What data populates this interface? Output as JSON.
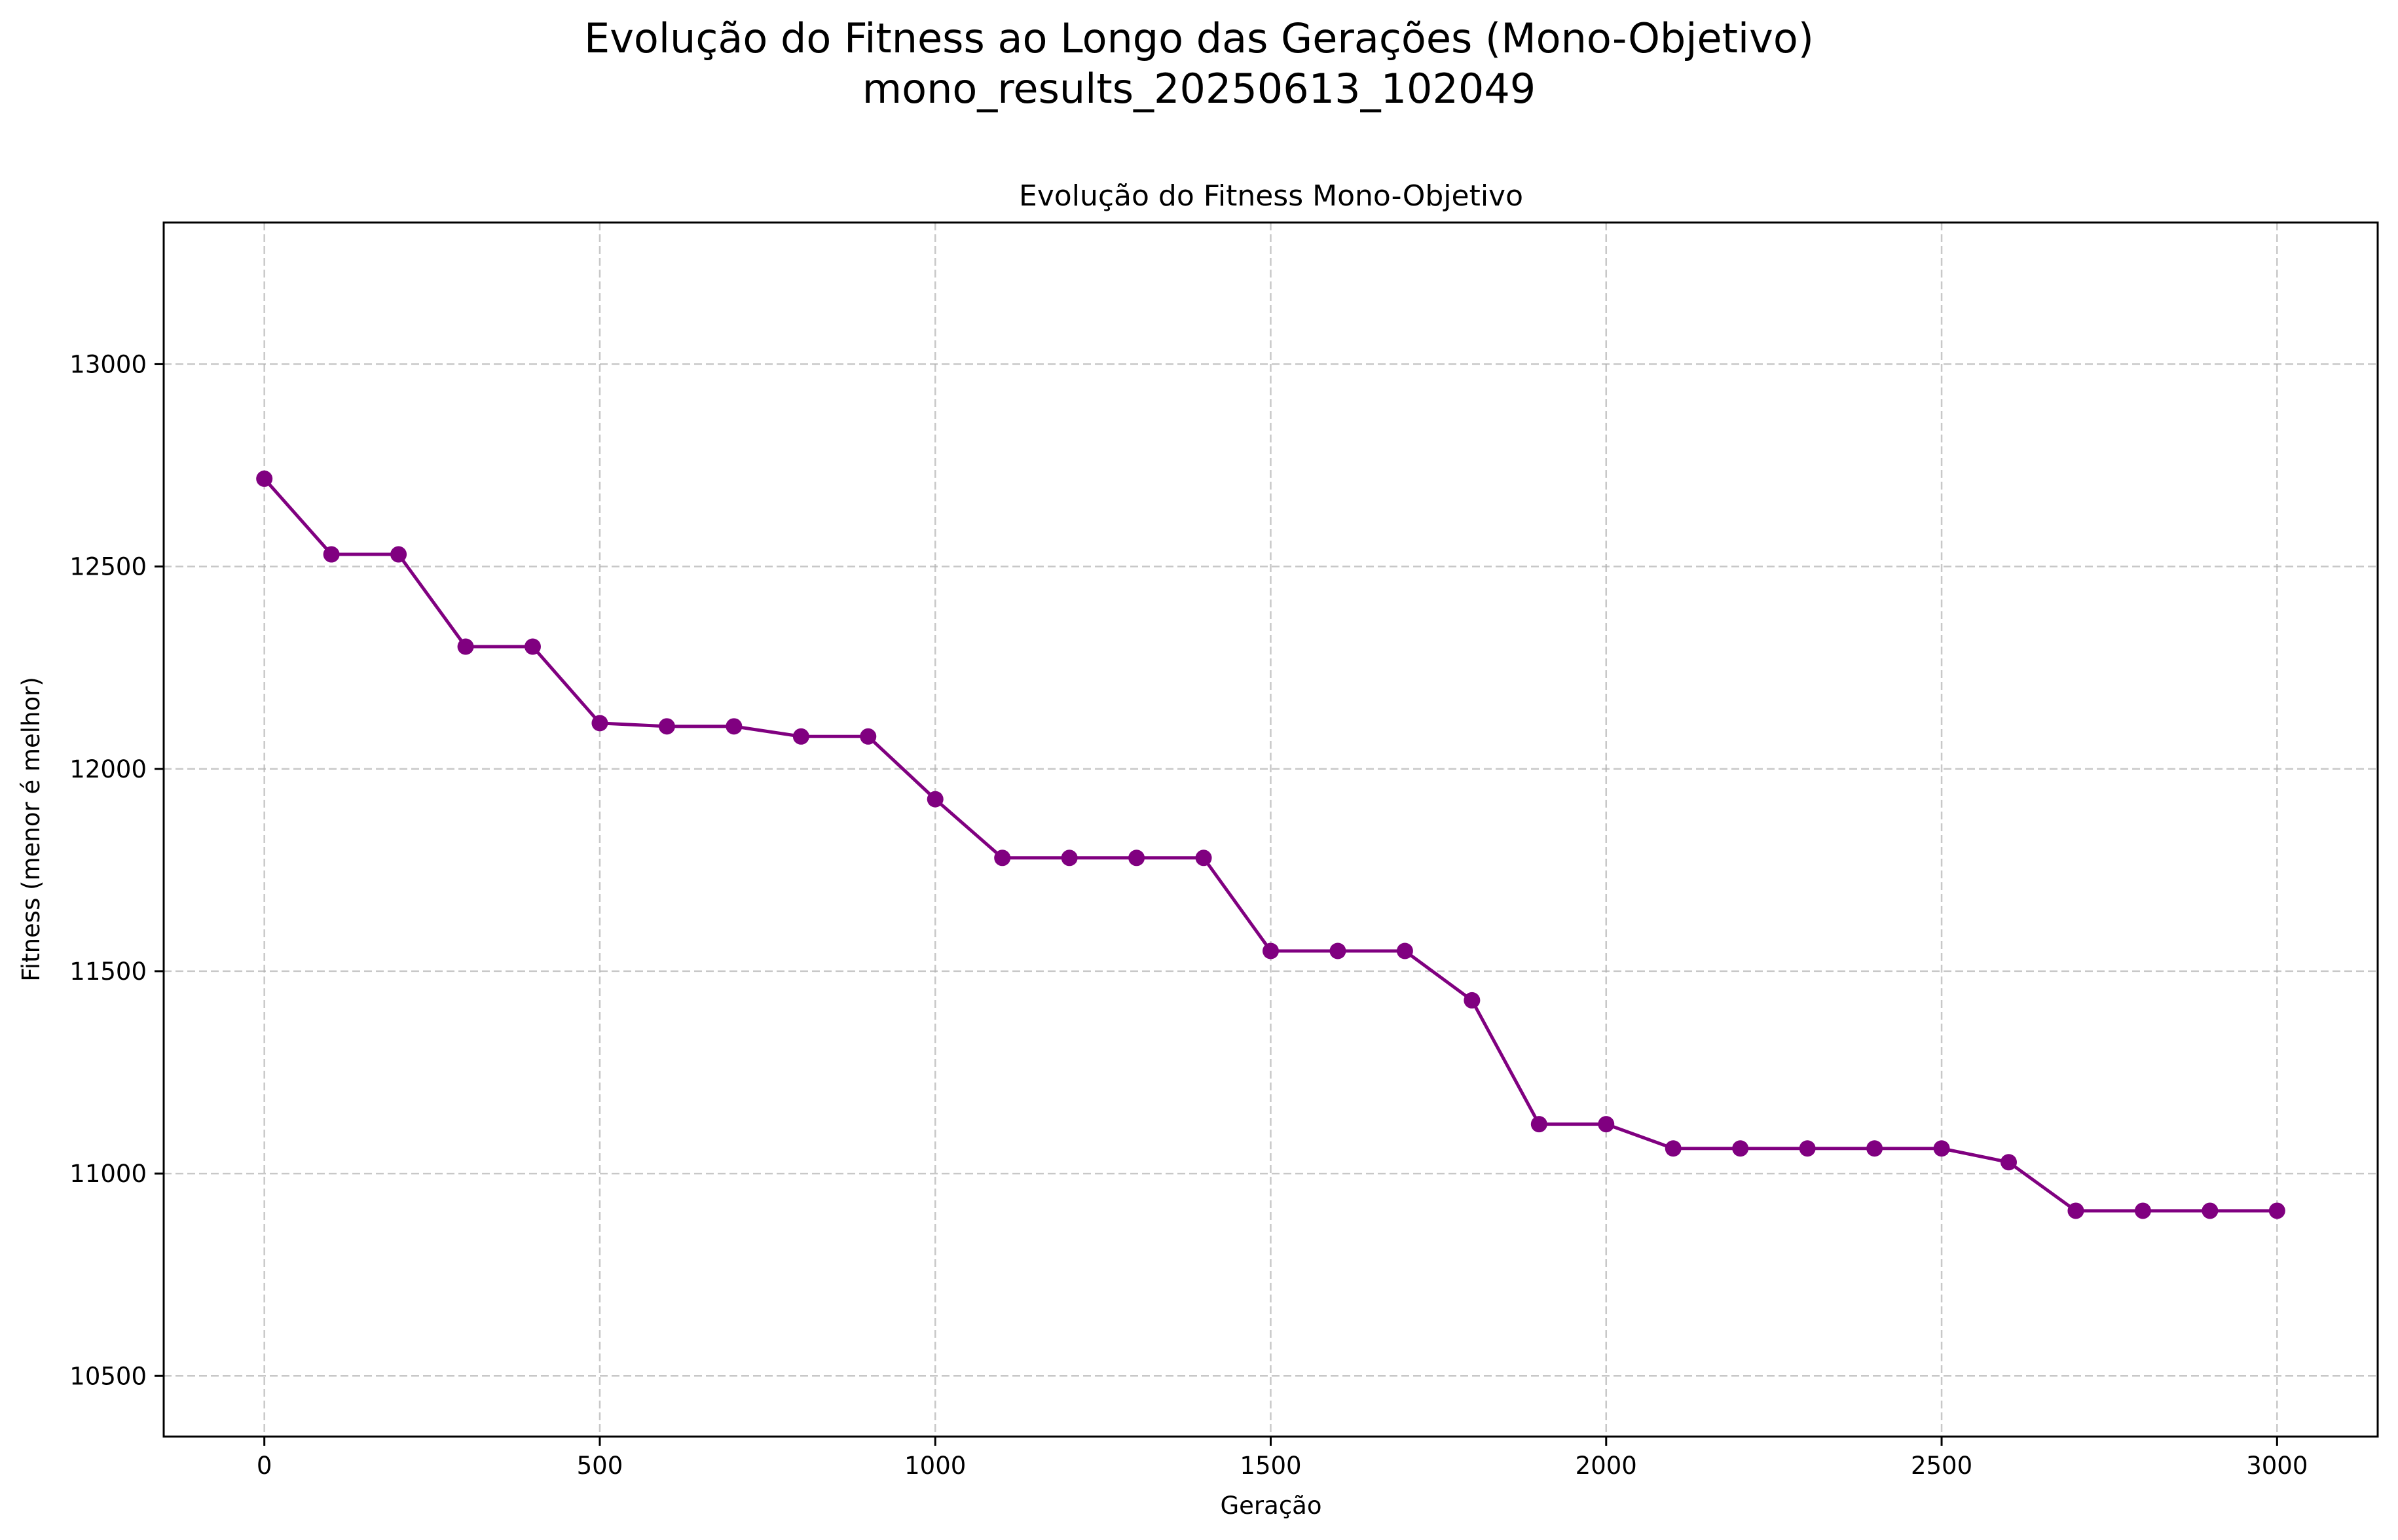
{
  "chart_data": {
    "type": "line",
    "suptitle": [
      "Evolução do Fitness ao Longo das Gerações (Mono-Objetivo)",
      "mono_results_20250613_102049"
    ],
    "title": "Evolução do Fitness Mono-Objetivo",
    "xlabel": "Geração",
    "ylabel": "Fitness (menor é melhor)",
    "xlim": [
      -150,
      3150
    ],
    "ylim": [
      10350,
      13350
    ],
    "xticks": [
      0,
      500,
      1000,
      1500,
      2000,
      2500,
      3000
    ],
    "xtick_labels": [
      "0",
      "500",
      "1000",
      "1500",
      "2000",
      "2500",
      "3000"
    ],
    "yticks": [
      10500,
      11000,
      11500,
      12000,
      12500,
      13000
    ],
    "ytick_labels": [
      "10500",
      "11000",
      "11500",
      "12000",
      "12500",
      "13000"
    ],
    "grid": true,
    "legend": false,
    "color": "#800080",
    "series": [
      {
        "x": [
          0,
          100,
          200,
          300,
          400,
          500,
          600,
          700,
          800,
          900,
          1000,
          1100,
          1200,
          1300,
          1400,
          1500,
          1600,
          1700,
          1800,
          1900,
          2000,
          2100,
          2200,
          2300,
          2400,
          2500,
          2600,
          2700,
          2800,
          2900,
          3000
        ],
        "y": [
          12717,
          12530,
          12530,
          12302,
          12302,
          12113,
          12105,
          12105,
          12080,
          12080,
          11925,
          11780,
          11780,
          11780,
          11780,
          11550,
          11550,
          11550,
          11428,
          11122,
          11122,
          11062,
          11062,
          11062,
          11062,
          11062,
          11028,
          10908,
          10908,
          10908,
          10908
        ]
      }
    ]
  }
}
